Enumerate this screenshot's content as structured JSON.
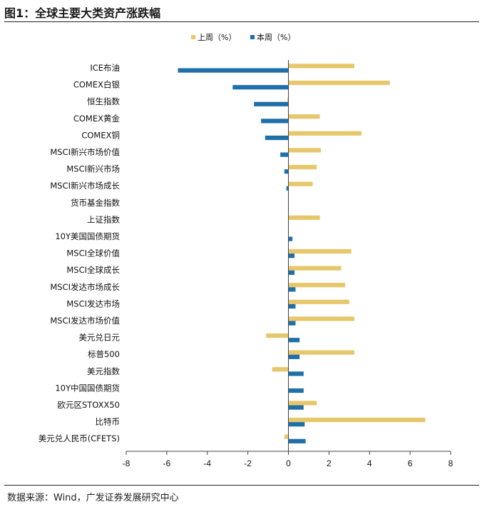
{
  "figure_title": "图1：全球主要大类资产涨跌幅",
  "source": "数据来源：Wind，广发证券发展研究中心",
  "chart_data": {
    "type": "bar",
    "orientation": "horizontal",
    "categories": [
      "ICE布油",
      "COMEX白银",
      "恒生指数",
      "COMEX黄金",
      "COMEX铜",
      "MSCI新兴市场价值",
      "MSCI新兴市场",
      "MSCI新兴市场成长",
      "货币基金指数",
      "上证指数",
      "10Y美国国债期货",
      "MSCI全球价值",
      "MSCI全球成长",
      "MSCI发达市场成长",
      "MSCI发达市场",
      "MSCI发达市场价值",
      "美元兑日元",
      "标普500",
      "美元指数",
      "10Y中国国债期货",
      "欧元区STOXX50",
      "比特币",
      "美元兑人民币(CFETS)"
    ],
    "series": [
      {
        "name": "上周（%）",
        "color": "#E6C76B",
        "values": [
          3.25,
          5.0,
          -0.05,
          1.55,
          3.6,
          1.6,
          1.4,
          1.2,
          0.0,
          1.55,
          0.0,
          3.1,
          2.6,
          2.8,
          3.0,
          3.25,
          -1.1,
          3.25,
          -0.8,
          0.0,
          1.4,
          6.75,
          -0.2
        ]
      },
      {
        "name": "本周（%）",
        "color": "#1F6FA8",
        "values": [
          -5.45,
          -2.75,
          -1.7,
          -1.35,
          -1.15,
          -0.4,
          -0.2,
          -0.1,
          0.0,
          0.0,
          0.2,
          0.3,
          0.3,
          0.35,
          0.35,
          0.35,
          0.55,
          0.55,
          0.75,
          0.75,
          0.75,
          0.8,
          0.85
        ]
      }
    ],
    "xlim": [
      -8,
      8
    ],
    "xticks": [
      "-8",
      "-6",
      "-4",
      "-2",
      "0",
      "2",
      "4",
      "6",
      "8"
    ],
    "grid": false,
    "legend_position": "top-center"
  }
}
